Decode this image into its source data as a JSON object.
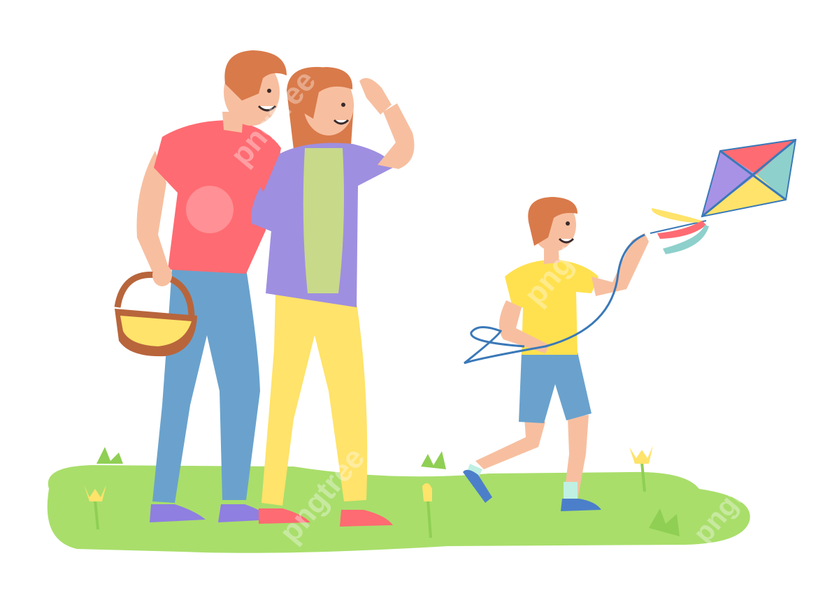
{
  "watermark": {
    "text": "pngtree",
    "brand": "pngtree"
  },
  "colors": {
    "background": "#ffffff",
    "grass": "#a9de6b",
    "grass_dark": "#8fcf54",
    "skin": "#f7bfa0",
    "hair": "#d97a4a",
    "dad_shirt": "#ff6b72",
    "dad_jeans": "#6aa2cd",
    "mom_cardigan": "#9f8fe0",
    "mom_top": "#c8d98a",
    "mom_pants": "#ffe36a",
    "boy_shirt": "#ffe14f",
    "boy_shorts": "#6aa2cd",
    "shoes_purple": "#8f7fe0",
    "shoes_red": "#ff6b72",
    "shoes_blue": "#4c7fc9",
    "basket": "#b8653c",
    "kite_red": "#ff6b72",
    "kite_purple": "#a892e6",
    "kite_yellow": "#ffe36a",
    "kite_teal": "#8ed0cc",
    "kite_string": "#3a79b8",
    "flower": "#ffe36a"
  },
  "scene": {
    "figures": [
      "father",
      "mother",
      "boy"
    ],
    "objects": [
      "picnic-basket",
      "kite",
      "kite-string",
      "tulips",
      "grass"
    ]
  }
}
